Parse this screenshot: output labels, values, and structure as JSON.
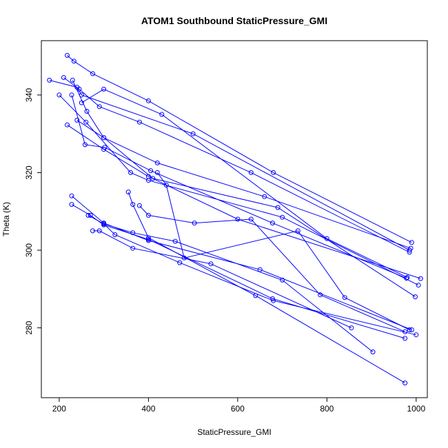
{
  "chart_data": {
    "type": "scatter",
    "title": "ATOM1 Southbound StaticPressure_GMI",
    "xlabel": "StaticPressure_GMI",
    "ylabel": "Theta (K)",
    "xlim": [
      160,
      1025
    ],
    "ylim": [
      262,
      354
    ],
    "xticks": [
      200,
      400,
      600,
      800,
      1000
    ],
    "yticks": [
      280,
      300,
      320,
      340
    ],
    "grid": false,
    "legend": "none",
    "color": "#0000ff",
    "series": [
      {
        "x": [
          178,
          240,
          250,
          500,
          985
        ],
        "y": [
          343.8,
          342,
          340,
          330,
          300
        ]
      },
      {
        "x": [
          218,
          233,
          275,
          400,
          680,
          990
        ],
        "y": [
          350.2,
          348.7,
          345.5,
          338.5,
          320,
          302
        ]
      },
      {
        "x": [
          210,
          245,
          290,
          380,
          630,
          985
        ],
        "y": [
          344.5,
          341.5,
          337,
          333,
          320,
          299.5
        ]
      },
      {
        "x": [
          230,
          262,
          300,
          420,
          660,
          988
        ],
        "y": [
          343.8,
          335.8,
          329,
          322.5,
          313.8,
          300.5
        ]
      },
      {
        "x": [
          228,
          258,
          302,
          405,
          678,
          978
        ],
        "y": [
          340,
          327.2,
          326.5,
          320.5,
          307,
          292.8
        ]
      },
      {
        "x": [
          218,
          300,
          400,
          600,
          1010
        ],
        "y": [
          332.3,
          326,
          319,
          308,
          292.7
        ]
      },
      {
        "x": [
          240,
          300,
          410,
          690,
          998
        ],
        "y": [
          333.5,
          329,
          318.5,
          311,
          288
        ]
      },
      {
        "x": [
          200,
          260,
          360,
          400,
          700,
          1005
        ],
        "y": [
          340,
          333,
          320,
          318,
          308.5,
          291
        ]
      },
      {
        "x": [
          228,
          300,
          400,
          650,
          990
        ],
        "y": [
          314,
          307,
          302.5,
          295,
          279.5
        ]
      },
      {
        "x": [
          228,
          270,
          300,
          400,
          678,
          975
        ],
        "y": [
          311.8,
          309,
          306.5,
          302.8,
          287.5,
          277.3
        ]
      },
      {
        "x": [
          265,
          300,
          325,
          470,
          680,
          1000
        ],
        "y": [
          309,
          306.8,
          304,
          296.8,
          287,
          278.2
        ]
      },
      {
        "x": [
          275,
          290,
          365,
          540,
          855
        ],
        "y": [
          305,
          305,
          300.5,
          296.5,
          280
        ]
      },
      {
        "x": [
          300,
          365,
          460,
          700,
          903
        ],
        "y": [
          306.8,
          304.5,
          302.3,
          292.3,
          273.8
        ]
      },
      {
        "x": [
          355,
          365,
          400,
          640,
          975
        ],
        "y": [
          315,
          311.8,
          303.2,
          288.3,
          265.8
        ]
      },
      {
        "x": [
          380,
          400,
          503,
          630,
          785,
          975
        ],
        "y": [
          311.5,
          309,
          307,
          308,
          288.5,
          279
        ]
      },
      {
        "x": [
          420,
          440,
          480,
          735,
          840,
          985
        ],
        "y": [
          320,
          316.8,
          298,
          305,
          287.8,
          279.5
        ]
      },
      {
        "x": [
          250,
          300,
          430,
          800,
          980
        ],
        "y": [
          338,
          341.5,
          335,
          303,
          293
        ]
      }
    ]
  }
}
